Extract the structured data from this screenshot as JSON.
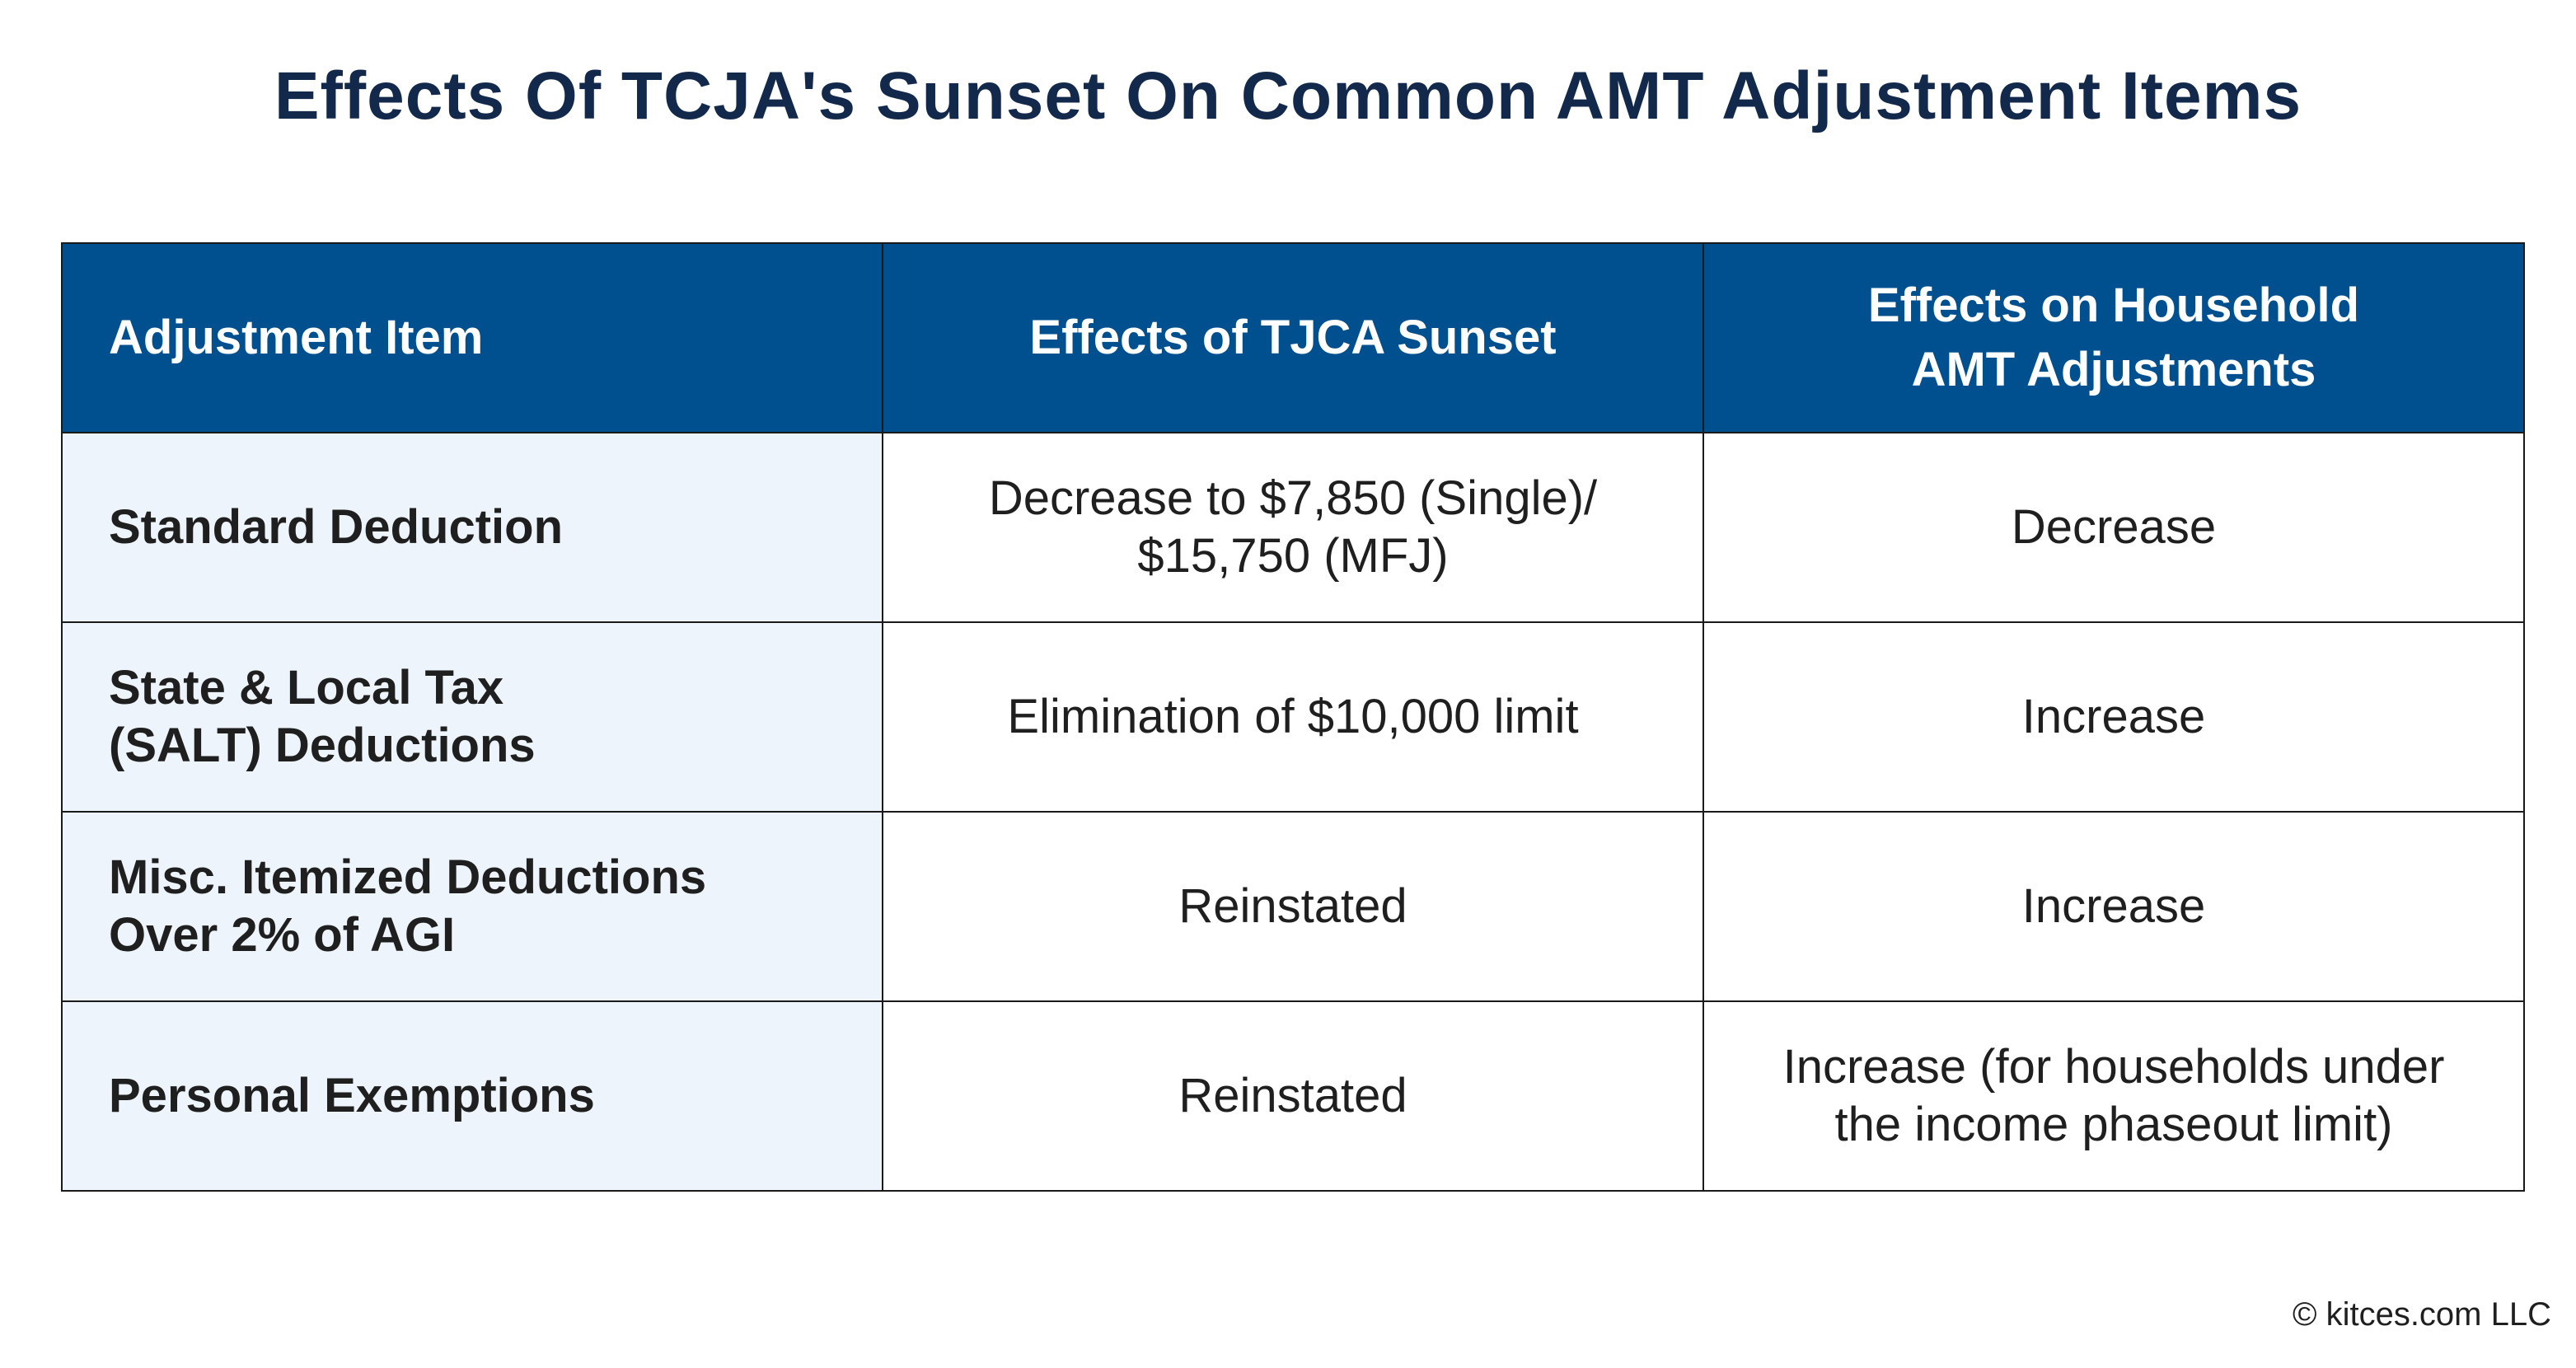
{
  "title": "Effects Of TCJA's Sunset On Common AMT Adjustment Items",
  "table": {
    "headers": [
      "Adjustment Item",
      "Effects of TJCA Sunset",
      "Effects on Household\nAMT Adjustments"
    ],
    "rows": [
      {
        "item": "Standard Deduction",
        "sunset_effect": "Decrease to $7,850 (Single)/\n$15,750 (MFJ)",
        "amt_effect": "Decrease"
      },
      {
        "item": "State & Local Tax\n(SALT) Deductions",
        "sunset_effect": "Elimination of $10,000 limit",
        "amt_effect": "Increase"
      },
      {
        "item": "Misc. Itemized Deductions\nOver 2% of AGI",
        "sunset_effect": "Reinstated",
        "amt_effect": "Increase"
      },
      {
        "item": "Personal Exemptions",
        "sunset_effect": "Reinstated",
        "amt_effect": "Increase (for households under\nthe income phaseout limit)"
      }
    ]
  },
  "footer": "© kitces.com LLC",
  "colors": {
    "title": "#13294b",
    "header_bg": "#00508f",
    "item_col_bg": "#edf4fb"
  }
}
